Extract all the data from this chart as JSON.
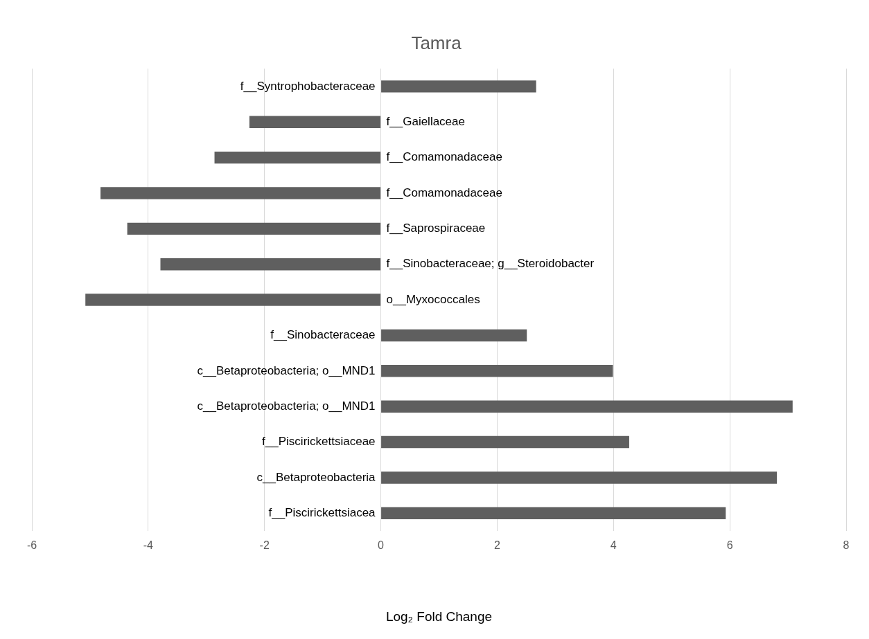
{
  "chart_data": {
    "type": "bar",
    "orientation": "horizontal",
    "title": "Tamra",
    "xlabel": "Log₂ Fold Change",
    "categories": [
      "f__Syntrophobacteraceae",
      "f__Gaiellaceae",
      "f__Comamonadaceae",
      "f__Comamonadaceae",
      "f__Saprospiraceae",
      "f__Sinobacteraceae; g__Steroidobacter",
      "o__Myxococcales",
      "f__Sinobacteraceae",
      "c__Betaproteobacteria; o__MND1",
      "c__Betaproteobacteria; o__MND1",
      "f__Piscirickettsiaceae",
      "c__Betaproteobacteria",
      "f__Piscirickettsiacea"
    ],
    "values": [
      2.67,
      -2.26,
      -2.86,
      -4.82,
      -4.36,
      -3.79,
      -5.08,
      2.51,
      3.99,
      7.08,
      4.27,
      6.81,
      5.93
    ],
    "color": "#5f5f5f",
    "xlim": [
      -6,
      8
    ],
    "xticks": [
      -6,
      -4,
      -2,
      0,
      2,
      4,
      6,
      8
    ],
    "grid": "x",
    "legend": false
  }
}
